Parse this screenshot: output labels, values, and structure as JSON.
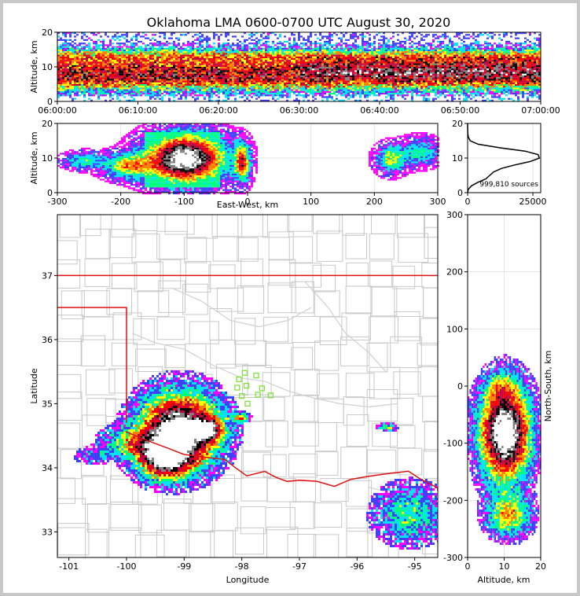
{
  "title": "Oklahoma LMA 0600-0700 UTC August 30, 2020",
  "chart_data": [
    {
      "type": "heatmap",
      "panel": "time-altitude",
      "ylabel": "Altitude, km",
      "xlim": [
        "06:00:00",
        "07:00:00"
      ],
      "ylim": [
        0,
        20
      ],
      "xticks": [
        "06:00:00",
        "06:10:00",
        "06:20:00",
        "06:30:00",
        "06:40:00",
        "06:50:00",
        "07:00:00"
      ],
      "yticks": [
        0,
        10,
        20
      ]
    },
    {
      "type": "heatmap",
      "panel": "east-west-altitude",
      "xlabel": "East-West, km",
      "ylabel": "Altitude, km",
      "xlim": [
        -300,
        300
      ],
      "ylim": [
        0,
        20
      ],
      "xticks": [
        -300,
        -200,
        -100,
        0,
        100,
        200,
        300
      ],
      "yticks": [
        0,
        10,
        20
      ]
    },
    {
      "type": "line",
      "panel": "altitude-histogram",
      "xlim": [
        0,
        28000
      ],
      "ylim": [
        0,
        20
      ],
      "xticks": [
        0,
        25000
      ],
      "yticks": [
        0,
        10,
        20
      ],
      "annotation": "999,810 sources",
      "profile": [
        {
          "count": 0,
          "alt": 0
        },
        {
          "count": 300,
          "alt": 1
        },
        {
          "count": 1500,
          "alt": 2
        },
        {
          "count": 4000,
          "alt": 3
        },
        {
          "count": 7000,
          "alt": 4
        },
        {
          "count": 8500,
          "alt": 5
        },
        {
          "count": 10000,
          "alt": 6
        },
        {
          "count": 13000,
          "alt": 7
        },
        {
          "count": 18000,
          "alt": 8
        },
        {
          "count": 24000,
          "alt": 9
        },
        {
          "count": 27500,
          "alt": 10
        },
        {
          "count": 27000,
          "alt": 11
        },
        {
          "count": 22000,
          "alt": 12
        },
        {
          "count": 12000,
          "alt": 13
        },
        {
          "count": 4000,
          "alt": 14
        },
        {
          "count": 1000,
          "alt": 15
        },
        {
          "count": 300,
          "alt": 16
        },
        {
          "count": 100,
          "alt": 17
        },
        {
          "count": 30,
          "alt": 18
        },
        {
          "count": 10,
          "alt": 19
        },
        {
          "count": 0,
          "alt": 20
        }
      ]
    },
    {
      "type": "heatmap",
      "panel": "plan-view",
      "xlabel": "Longitude",
      "ylabel": "Latitude",
      "xlim": [
        -101.2,
        -94.6
      ],
      "ylim": [
        32.6,
        37.95
      ],
      "xticks": [
        -101,
        -100,
        -99,
        -98,
        -97,
        -96,
        -95
      ],
      "yticks": [
        33,
        34,
        35,
        36,
        37
      ],
      "stations": [
        {
          "lon": -97.95,
          "lat": 35.48
        },
        {
          "lon": -97.75,
          "lat": 35.44
        },
        {
          "lon": -98.05,
          "lat": 35.38
        },
        {
          "lon": -97.92,
          "lat": 35.28
        },
        {
          "lon": -98.08,
          "lat": 35.25
        },
        {
          "lon": -97.65,
          "lat": 35.24
        },
        {
          "lon": -98.0,
          "lat": 35.12
        },
        {
          "lon": -97.72,
          "lat": 35.14
        },
        {
          "lon": -97.5,
          "lat": 35.13
        },
        {
          "lon": -97.9,
          "lat": 35.0
        }
      ]
    },
    {
      "type": "heatmap",
      "panel": "altitude-north-south",
      "xlabel": "Altitude, km",
      "ylabel": "North-South, km",
      "xlim": [
        0,
        20
      ],
      "ylim": [
        -300,
        300
      ],
      "xticks": [
        0,
        10,
        20
      ],
      "yticks": [
        -300,
        -200,
        -100,
        0,
        100,
        200,
        300
      ]
    }
  ],
  "colors": {
    "state_border": "#e01010",
    "county_lines": "#c8c8c8",
    "station_marker": "#80e040",
    "density_scale": [
      "#ffffff",
      "#ff00ff",
      "#4040ff",
      "#00e0ff",
      "#00ff80",
      "#ffff00",
      "#ff8000",
      "#ff0000",
      "#c00040",
      "#000000",
      "#808080",
      "#ffffff"
    ]
  }
}
